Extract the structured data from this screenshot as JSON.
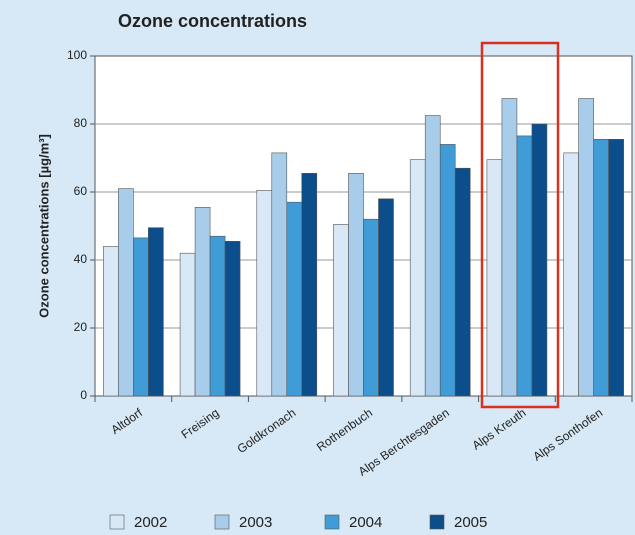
{
  "chart_data": {
    "type": "bar",
    "title": "Ozone concentrations",
    "y_label": "Ozone concentrations [µg/m³]",
    "categories": [
      "Altdorf",
      "Freising",
      "Goldkronach",
      "Rothenbuch",
      "Alps Berchtesgaden",
      "Alps Kreuth",
      "Alps Sonthofen"
    ],
    "series": [
      {
        "name": "2002",
        "color": "#d8e8f7",
        "values": [
          44,
          42,
          60.5,
          50.5,
          69.5,
          69.5,
          71.5
        ]
      },
      {
        "name": "2003",
        "color": "#a7cdea",
        "values": [
          61,
          55.5,
          71.5,
          65.5,
          82.5,
          87.5,
          87.5
        ]
      },
      {
        "name": "2004",
        "color": "#3f9cd6",
        "values": [
          46.5,
          47,
          57,
          52,
          74,
          76.5,
          75.5
        ]
      },
      {
        "name": "2005",
        "color": "#0b4e8b",
        "values": [
          49.5,
          45.5,
          65.5,
          58,
          67,
          80,
          75.5
        ]
      }
    ],
    "ylim": [
      0,
      100
    ],
    "yticks": [
      0,
      20,
      40,
      60,
      80,
      100
    ],
    "grid": true
  }
}
